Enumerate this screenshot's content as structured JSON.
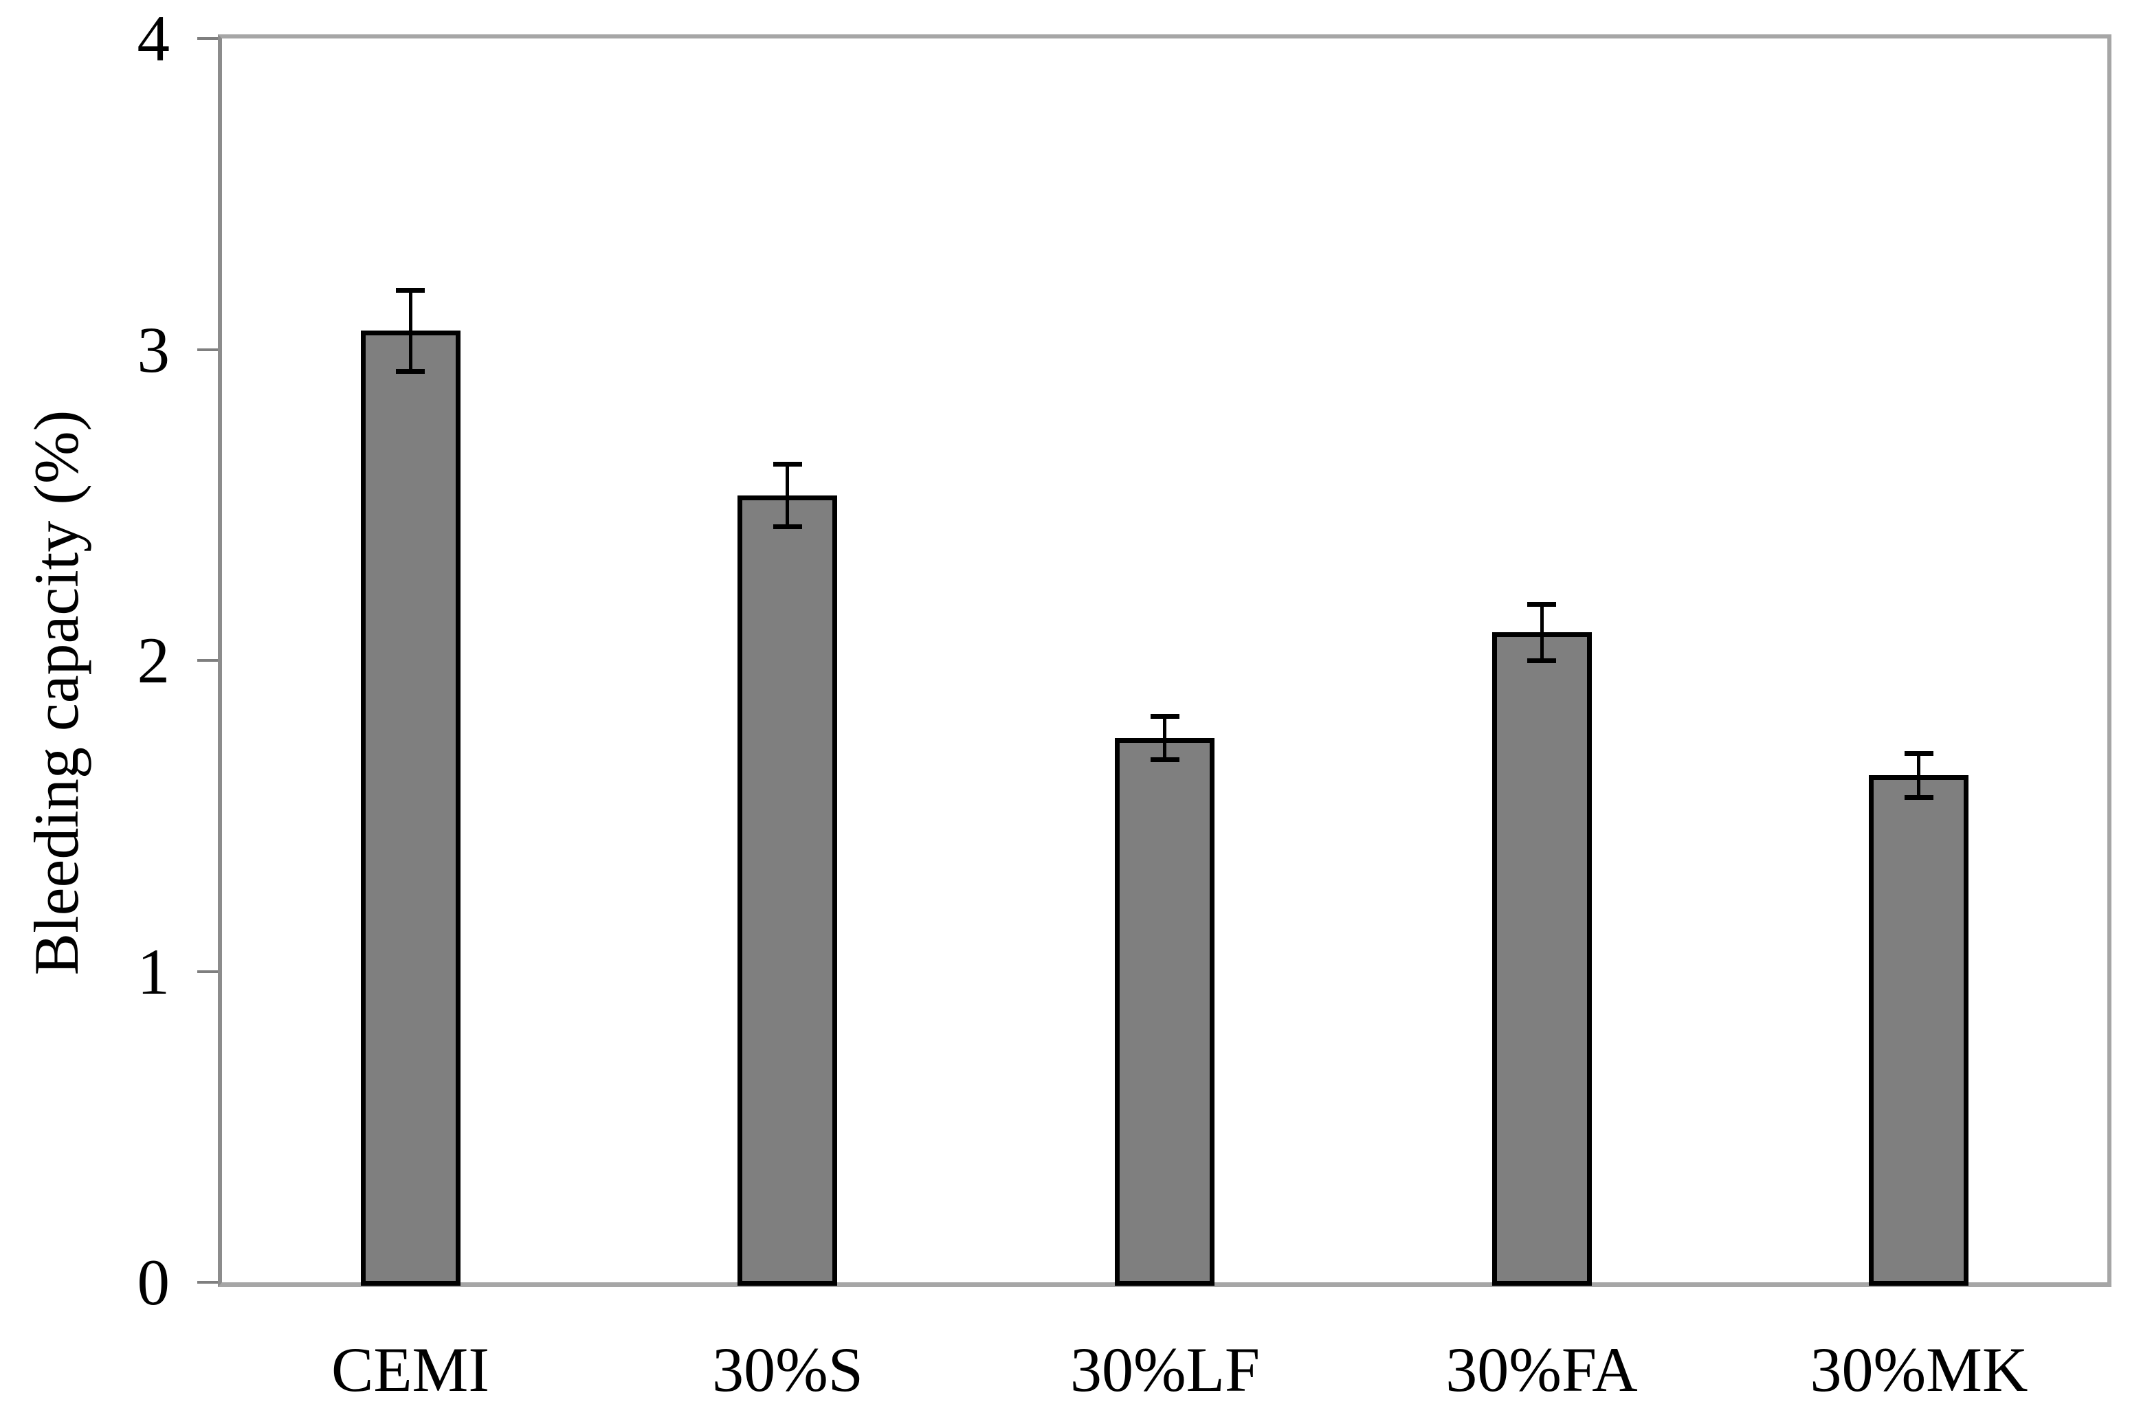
{
  "figure": {
    "background": "#ffffff"
  },
  "chart_data": {
    "type": "bar",
    "title": "",
    "xlabel": "",
    "ylabel": "Bleeding capacity (%)",
    "categories": [
      "CEMI",
      "30%S",
      "30%LF",
      "30%FA",
      "30%MK"
    ],
    "values": [
      3.06,
      2.53,
      1.75,
      2.09,
      1.63
    ],
    "errors": [
      0.13,
      0.1,
      0.07,
      0.09,
      0.07
    ],
    "ylim": [
      0,
      4
    ],
    "yticks": [
      "0",
      "1",
      "2",
      "3",
      "4"
    ],
    "grid": false,
    "legend": false,
    "bar_color": "#7f7f7f",
    "bar_border_color": "#000000",
    "error_color": "#000000",
    "tick_color": "#7f7f7f",
    "axis_line_color": "#8c8c8c",
    "plot_border_color": "#a6a6a6",
    "text_color": "#000000"
  }
}
